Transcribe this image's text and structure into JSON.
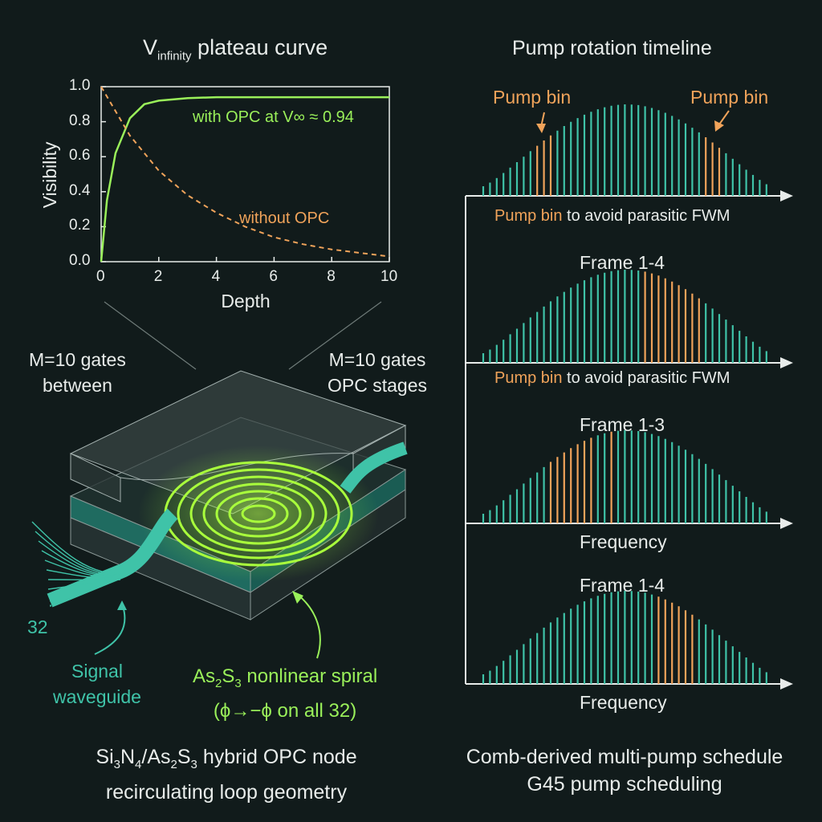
{
  "plot": {
    "title_main": "V",
    "title_sub": "infinity",
    "title_rest": " plateau curve",
    "ylabel": "Visibility",
    "xlabel": "Depth",
    "yticks": [
      "0.0",
      "0.2",
      "0.4",
      "0.6",
      "0.8",
      "1.0"
    ],
    "xticks": [
      "0",
      "2",
      "4",
      "6",
      "8",
      "10"
    ],
    "label_with_opc": "with OPC at V∞ ≈ 0.94",
    "label_without_opc": "without OPC"
  },
  "chart_data": {
    "type": "line",
    "title": "Vinfinity plateau curve",
    "xlabel": "Depth",
    "ylabel": "Visibility",
    "xlim": [
      0,
      10
    ],
    "ylim": [
      0,
      1.0
    ],
    "series": [
      {
        "name": "with OPC at V∞ ≈ 0.94",
        "x": [
          0,
          0.2,
          0.5,
          1,
          1.5,
          2,
          3,
          4,
          6,
          8,
          10
        ],
        "y": [
          0,
          0.35,
          0.62,
          0.82,
          0.9,
          0.92,
          0.935,
          0.94,
          0.94,
          0.94,
          0.94
        ]
      },
      {
        "name": "without OPC",
        "x": [
          0,
          1,
          2,
          3,
          4,
          5,
          6,
          7,
          8,
          9,
          10
        ],
        "y": [
          1.0,
          0.72,
          0.52,
          0.38,
          0.28,
          0.2,
          0.14,
          0.1,
          0.07,
          0.05,
          0.03
        ]
      }
    ]
  },
  "left": {
    "gates_left_1": "M=10 gates",
    "gates_left_2": "between",
    "gates_right_1": "M=10 gates",
    "gates_right_2": "OPC stages",
    "fan_count": "32",
    "signal_1": "Signal",
    "signal_2": "waveguide",
    "spiral_1_pre": "As",
    "spiral_1_s1": "2",
    "spiral_1_mid": "S",
    "spiral_1_s2": "3",
    "spiral_1_post": " nonlinear spiral",
    "spiral_2": "(ϕ→−ϕ  on all 32)",
    "caption_1_a": "Si",
    "caption_1_s1": "3",
    "caption_1_b": "N",
    "caption_1_s2": "4",
    "caption_1_c": "/As",
    "caption_1_s3": "2",
    "caption_1_d": "S",
    "caption_1_s4": "3",
    "caption_1_e": " hybrid OPC node",
    "caption_2": "recirculating loop geometry"
  },
  "right": {
    "title": "Pump rotation timeline",
    "pump_bin_left": "Pump bin",
    "pump_bin_right": "Pump bin",
    "note_1_o": "Pump bin",
    "note_1_w": " to avoid parasitic FWM",
    "frame_1": "Frame 1-4",
    "note_2_o": "Pump bin",
    "note_2_w": " to avoid parasitic FWM",
    "frame_2": "Frame 1-3",
    "freq_1": "Frequency",
    "frame_3": "Frame 1-4",
    "freq_2": "Frequency",
    "caption_1": "Comb-derived multi-pump schedule",
    "caption_2": "G45 pump scheduling"
  },
  "colors": {
    "teal": "#3fc3a8",
    "orange": "#f0a35a",
    "green": "#9af05a",
    "background": "#111b1b"
  }
}
